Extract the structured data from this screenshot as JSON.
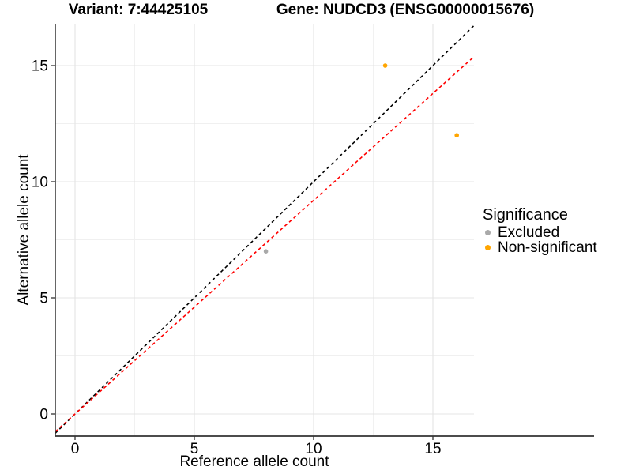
{
  "titles": {
    "variant": "Variant: 7:44425105",
    "gene": "Gene: NUDCD3 (ENSG00000015676)"
  },
  "chart_data": {
    "type": "scatter",
    "xlabel": "Reference allele count",
    "ylabel": "Alternative allele count",
    "x_ticks": [
      0,
      5,
      10,
      15
    ],
    "y_ticks": [
      0,
      5,
      10,
      15
    ],
    "x_minor": [
      2.5,
      7.5,
      12.5
    ],
    "y_minor": [
      2.5,
      7.5,
      12.5
    ],
    "xlim": [
      -0.83,
      16.72
    ],
    "ylim": [
      -0.95,
      16.8
    ],
    "grid": true,
    "points": [
      {
        "x": 8,
        "y": 7,
        "series": "Excluded"
      },
      {
        "x": 13,
        "y": 15,
        "series": "Non-significant"
      },
      {
        "x": 16,
        "y": 12,
        "series": "Non-significant"
      }
    ],
    "lines": [
      {
        "name": "identity-line",
        "slope": 1.0,
        "intercept": 0,
        "color": "#000000",
        "style": "dashed"
      },
      {
        "name": "threshold-line",
        "slope": 0.92,
        "intercept": 0,
        "color": "#FF0000",
        "style": "dashed"
      }
    ],
    "series_colors": {
      "Excluded": "#A9A9A9",
      "Non-significant": "#FFA500"
    },
    "legend_position": "right"
  },
  "legend": {
    "title": "Significance",
    "items": [
      {
        "label": "Excluded",
        "color": "#A9A9A9"
      },
      {
        "label": "Non-significant",
        "color": "#FFA500"
      }
    ]
  },
  "colors": {
    "background": "#FFFFFF",
    "grid_major": "#E4E4E4",
    "grid_minor": "#F0F0F0",
    "axis": "#333333",
    "text": "#000000"
  }
}
